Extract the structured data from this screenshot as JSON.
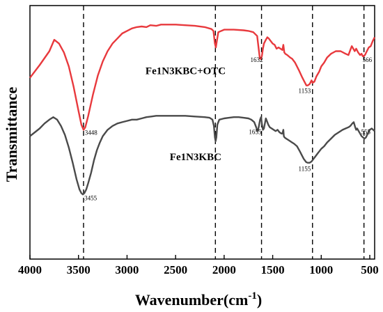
{
  "chart_data": {
    "type": "line",
    "title": "",
    "xlabel": "Wavenumber(cm",
    "xlabel_sup": "-1",
    "xlabel_close": ")",
    "ylabel": "Transmittance",
    "xlim": [
      4000,
      450
    ],
    "ylim": [
      0,
      2
    ],
    "x_ticks": [
      4000,
      3500,
      3000,
      2500,
      2000,
      1500,
      1000,
      500
    ],
    "y_ticks_shown": false,
    "grid": false,
    "reference_lines_x": [
      3448,
      2090,
      1615,
      1090,
      560
    ],
    "series": [
      {
        "name": "Fe1N3KBC+OTC",
        "color": "#e8393d",
        "points": [
          [
            4000,
            1.43
          ],
          [
            3900,
            1.53
          ],
          [
            3800,
            1.64
          ],
          [
            3750,
            1.73
          ],
          [
            3700,
            1.7
          ],
          [
            3650,
            1.63
          ],
          [
            3600,
            1.52
          ],
          [
            3550,
            1.36
          ],
          [
            3500,
            1.17
          ],
          [
            3470,
            1.06
          ],
          [
            3448,
            1.02
          ],
          [
            3430,
            1.04
          ],
          [
            3400,
            1.13
          ],
          [
            3350,
            1.3
          ],
          [
            3300,
            1.45
          ],
          [
            3250,
            1.56
          ],
          [
            3200,
            1.64
          ],
          [
            3150,
            1.7
          ],
          [
            3100,
            1.74
          ],
          [
            3050,
            1.78
          ],
          [
            3000,
            1.8
          ],
          [
            2950,
            1.82
          ],
          [
            2900,
            1.83
          ],
          [
            2850,
            1.835
          ],
          [
            2800,
            1.83
          ],
          [
            2760,
            1.845
          ],
          [
            2700,
            1.84
          ],
          [
            2650,
            1.85
          ],
          [
            2600,
            1.85
          ],
          [
            2500,
            1.85
          ],
          [
            2400,
            1.845
          ],
          [
            2300,
            1.84
          ],
          [
            2200,
            1.83
          ],
          [
            2130,
            1.815
          ],
          [
            2110,
            1.8
          ],
          [
            2095,
            1.7
          ],
          [
            2085,
            1.67
          ],
          [
            2075,
            1.72
          ],
          [
            2060,
            1.79
          ],
          [
            2000,
            1.81
          ],
          [
            1900,
            1.81
          ],
          [
            1800,
            1.805
          ],
          [
            1750,
            1.8
          ],
          [
            1700,
            1.79
          ],
          [
            1660,
            1.76
          ],
          [
            1640,
            1.63
          ],
          [
            1632,
            1.58
          ],
          [
            1622,
            1.58
          ],
          [
            1612,
            1.6
          ],
          [
            1600,
            1.66
          ],
          [
            1590,
            1.7
          ],
          [
            1570,
            1.73
          ],
          [
            1555,
            1.75
          ],
          [
            1540,
            1.74
          ],
          [
            1520,
            1.72
          ],
          [
            1500,
            1.7
          ],
          [
            1480,
            1.69
          ],
          [
            1460,
            1.66
          ],
          [
            1440,
            1.67
          ],
          [
            1420,
            1.66
          ],
          [
            1400,
            1.65
          ],
          [
            1390,
            1.69
          ],
          [
            1380,
            1.63
          ],
          [
            1370,
            1.62
          ],
          [
            1350,
            1.61
          ],
          [
            1320,
            1.59
          ],
          [
            1300,
            1.58
          ],
          [
            1270,
            1.55
          ],
          [
            1250,
            1.52
          ],
          [
            1230,
            1.49
          ],
          [
            1200,
            1.44
          ],
          [
            1180,
            1.41
          ],
          [
            1160,
            1.38
          ],
          [
            1153,
            1.37
          ],
          [
            1140,
            1.37
          ],
          [
            1120,
            1.38
          ],
          [
            1100,
            1.41
          ],
          [
            1090,
            1.39
          ],
          [
            1070,
            1.4
          ],
          [
            1050,
            1.44
          ],
          [
            1020,
            1.48
          ],
          [
            1000,
            1.52
          ],
          [
            970,
            1.55
          ],
          [
            940,
            1.59
          ],
          [
            900,
            1.62
          ],
          [
            850,
            1.64
          ],
          [
            800,
            1.64
          ],
          [
            750,
            1.62
          ],
          [
            720,
            1.61
          ],
          [
            700,
            1.65
          ],
          [
            685,
            1.68
          ],
          [
            670,
            1.66
          ],
          [
            655,
            1.64
          ],
          [
            640,
            1.66
          ],
          [
            620,
            1.63
          ],
          [
            600,
            1.61
          ],
          [
            585,
            1.62
          ],
          [
            572,
            1.6
          ],
          [
            566,
            1.6
          ],
          [
            550,
            1.61
          ],
          [
            530,
            1.64
          ],
          [
            510,
            1.67
          ],
          [
            490,
            1.68
          ],
          [
            470,
            1.72
          ],
          [
            450,
            1.75
          ]
        ]
      },
      {
        "name": "Fe1N3KBC",
        "color": "#4a4a4a",
        "points": [
          [
            4000,
            0.97
          ],
          [
            3950,
            1.0
          ],
          [
            3900,
            1.03
          ],
          [
            3850,
            1.07
          ],
          [
            3800,
            1.1
          ],
          [
            3760,
            1.12
          ],
          [
            3720,
            1.1
          ],
          [
            3680,
            1.05
          ],
          [
            3640,
            0.98
          ],
          [
            3600,
            0.88
          ],
          [
            3560,
            0.76
          ],
          [
            3520,
            0.63
          ],
          [
            3490,
            0.55
          ],
          [
            3470,
            0.52
          ],
          [
            3455,
            0.51
          ],
          [
            3440,
            0.52
          ],
          [
            3420,
            0.55
          ],
          [
            3400,
            0.6
          ],
          [
            3370,
            0.68
          ],
          [
            3340,
            0.78
          ],
          [
            3310,
            0.86
          ],
          [
            3280,
            0.92
          ],
          [
            3250,
            0.97
          ],
          [
            3200,
            1.02
          ],
          [
            3150,
            1.05
          ],
          [
            3100,
            1.07
          ],
          [
            3050,
            1.08
          ],
          [
            3000,
            1.09
          ],
          [
            2950,
            1.1
          ],
          [
            2900,
            1.1
          ],
          [
            2850,
            1.11
          ],
          [
            2800,
            1.12
          ],
          [
            2750,
            1.125
          ],
          [
            2700,
            1.13
          ],
          [
            2600,
            1.13
          ],
          [
            2500,
            1.13
          ],
          [
            2400,
            1.13
          ],
          [
            2300,
            1.125
          ],
          [
            2200,
            1.12
          ],
          [
            2150,
            1.115
          ],
          [
            2120,
            1.1
          ],
          [
            2105,
            1.05
          ],
          [
            2095,
            0.96
          ],
          [
            2088,
            0.93
          ],
          [
            2080,
            0.96
          ],
          [
            2070,
            1.06
          ],
          [
            2050,
            1.1
          ],
          [
            2000,
            1.11
          ],
          [
            1950,
            1.115
          ],
          [
            1900,
            1.12
          ],
          [
            1850,
            1.12
          ],
          [
            1800,
            1.115
          ],
          [
            1750,
            1.11
          ],
          [
            1720,
            1.1
          ],
          [
            1690,
            1.08
          ],
          [
            1670,
            1.04
          ],
          [
            1658,
            1.01
          ],
          [
            1650,
            1.02
          ],
          [
            1642,
            1.05
          ],
          [
            1630,
            1.1
          ],
          [
            1620,
            1.12
          ],
          [
            1610,
            1.06
          ],
          [
            1600,
            1.02
          ],
          [
            1590,
            1.03
          ],
          [
            1580,
            1.07
          ],
          [
            1570,
            1.11
          ],
          [
            1560,
            1.09
          ],
          [
            1545,
            1.06
          ],
          [
            1530,
            1.04
          ],
          [
            1510,
            1.03
          ],
          [
            1490,
            1.02
          ],
          [
            1470,
            1.01
          ],
          [
            1450,
            1.02
          ],
          [
            1430,
            1.0
          ],
          [
            1410,
            0.99
          ],
          [
            1400,
            0.99
          ],
          [
            1390,
            1.02
          ],
          [
            1385,
            0.97
          ],
          [
            1378,
            0.96
          ],
          [
            1360,
            0.95
          ],
          [
            1340,
            0.94
          ],
          [
            1320,
            0.93
          ],
          [
            1300,
            0.92
          ],
          [
            1280,
            0.91
          ],
          [
            1250,
            0.89
          ],
          [
            1220,
            0.85
          ],
          [
            1200,
            0.82
          ],
          [
            1180,
            0.79
          ],
          [
            1160,
            0.77
          ],
          [
            1155,
            0.765
          ],
          [
            1140,
            0.76
          ],
          [
            1120,
            0.76
          ],
          [
            1100,
            0.77
          ],
          [
            1080,
            0.79
          ],
          [
            1060,
            0.81
          ],
          [
            1040,
            0.83
          ],
          [
            1020,
            0.85
          ],
          [
            1000,
            0.87
          ],
          [
            970,
            0.89
          ],
          [
            940,
            0.92
          ],
          [
            900,
            0.95
          ],
          [
            860,
            0.98
          ],
          [
            820,
            1.0
          ],
          [
            780,
            1.02
          ],
          [
            750,
            1.03
          ],
          [
            720,
            1.04
          ],
          [
            700,
            1.05
          ],
          [
            680,
            1.07
          ],
          [
            665,
            1.08
          ],
          [
            650,
            1.04
          ],
          [
            640,
            1.02
          ],
          [
            630,
            1.03
          ],
          [
            615,
            1.01
          ],
          [
            600,
            0.99
          ],
          [
            585,
            0.97
          ],
          [
            570,
            0.96
          ],
          [
            555,
            0.95
          ],
          [
            540,
            0.96
          ],
          [
            520,
            0.99
          ],
          [
            500,
            1.02
          ],
          [
            480,
            1.03
          ],
          [
            465,
            1.02
          ],
          [
            450,
            1.01
          ]
        ]
      }
    ],
    "series_labels": [
      {
        "text": "Fe1N3KBC+OTC",
        "x": 2810,
        "y": 1.46
      },
      {
        "text": "Fe1N3KBC",
        "x": 2560,
        "y": 0.78
      }
    ],
    "annotations": [
      {
        "text": "3448",
        "x": 3435,
        "y": 0.98
      },
      {
        "text": "1632",
        "x": 1730,
        "y": 1.555
      },
      {
        "text": "566",
        "x": 575,
        "y": 1.555
      },
      {
        "text": "1153",
        "x": 1235,
        "y": 1.31
      },
      {
        "text": "3455",
        "x": 3440,
        "y": 0.465
      },
      {
        "text": "1655",
        "x": 1745,
        "y": 0.985
      },
      {
        "text": "555",
        "x": 590,
        "y": 0.985
      },
      {
        "text": "1155",
        "x": 1235,
        "y": 0.695
      }
    ]
  }
}
